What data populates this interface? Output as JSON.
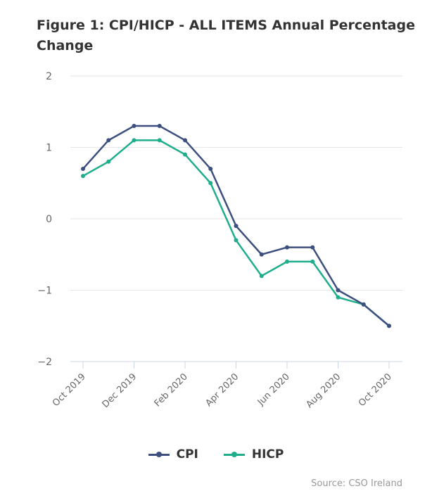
{
  "chart_data": {
    "type": "line",
    "title": "Figure 1: CPI/HICP - ALL ITEMS Annual Percentage Change",
    "xlabel": "",
    "ylabel": "",
    "ylim": [
      -2,
      2
    ],
    "yticks": [
      "2",
      "1",
      "0",
      "−1",
      "−2"
    ],
    "ytick_values": [
      2,
      1,
      0,
      -1,
      -2
    ],
    "x": [
      "Oct 2019",
      "Nov 2019",
      "Dec 2019",
      "Jan 2020",
      "Feb 2020",
      "Mar 2020",
      "Apr 2020",
      "May 2020",
      "Jun 2020",
      "Jul 2020",
      "Aug 2020",
      "Sep 2020",
      "Oct 2020"
    ],
    "xtick_labels": [
      "Oct 2019",
      "Dec 2019",
      "Feb 2020",
      "Apr 2020",
      "Jun 2020",
      "Aug 2020",
      "Oct 2020"
    ],
    "xtick_indices": [
      0,
      2,
      4,
      6,
      8,
      10,
      12
    ],
    "series": [
      {
        "name": "CPI",
        "color": "#3d4f7f",
        "values": [
          0.7,
          1.1,
          1.3,
          1.3,
          1.1,
          0.7,
          -0.1,
          -0.5,
          -0.4,
          -0.4,
          -1.0,
          -1.2,
          -1.5
        ]
      },
      {
        "name": "HICP",
        "color": "#1fae8c",
        "values": [
          0.6,
          0.8,
          1.1,
          1.1,
          0.9,
          0.5,
          -0.3,
          -0.8,
          -0.6,
          -0.6,
          -1.1,
          -1.2,
          -1.5
        ]
      }
    ],
    "grid": true,
    "legend_position": "bottom-center",
    "source": "Source: CSO Ireland"
  }
}
